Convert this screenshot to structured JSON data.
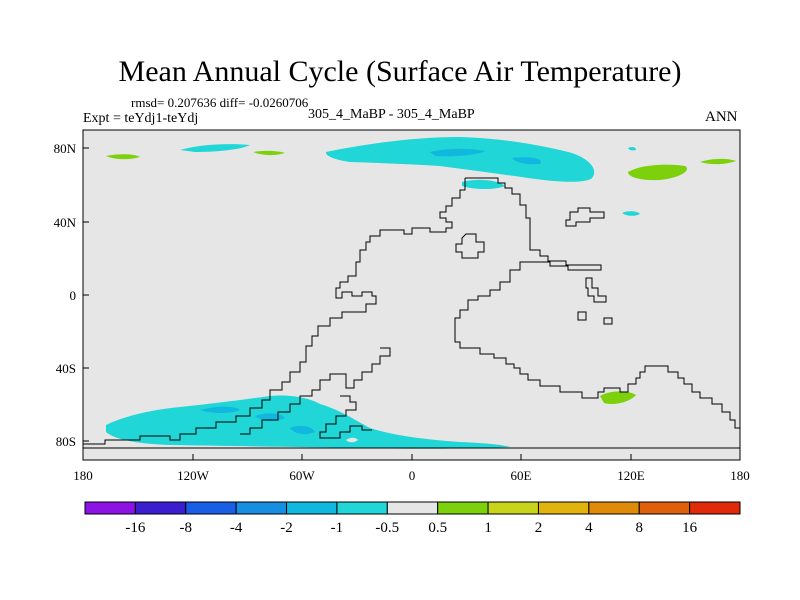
{
  "title": "Mean Annual Cycle (Surface Air Temperature)",
  "stats_line": "rmsd= 0.207636 diff= -0.0260706",
  "expt_line": "Expt = teYdj1-teYdj",
  "subtitle": "305_4_MaBP - 305_4_MaBP",
  "season": "ANN",
  "axes": {
    "lon_labels": [
      "180",
      "120W",
      "60W",
      "0",
      "60E",
      "120E",
      "180"
    ],
    "lat_labels": [
      "80N",
      "40N",
      "0",
      "40S",
      "80S"
    ]
  },
  "colors": {
    "land_background": "#e6e6e6",
    "coastline": "#000000",
    "light_cyan": "#20d6d6",
    "cyan_blue": "#10b8e0",
    "green": "#7cd10c"
  },
  "legend": {
    "labels": [
      "-16",
      "-8",
      "-4",
      "-2",
      "-1",
      "-0.5",
      "0.5",
      "1",
      "2",
      "4",
      "8",
      "16"
    ],
    "colors": [
      "#8d12e6",
      "#3a1ecf",
      "#1a5ee6",
      "#168fe0",
      "#10b8e0",
      "#20d6d6",
      "#e6e6e6",
      "#7cd10c",
      "#c8d41a",
      "#e0b40c",
      "#e08a0a",
      "#e0600a",
      "#e02a0a"
    ]
  }
}
